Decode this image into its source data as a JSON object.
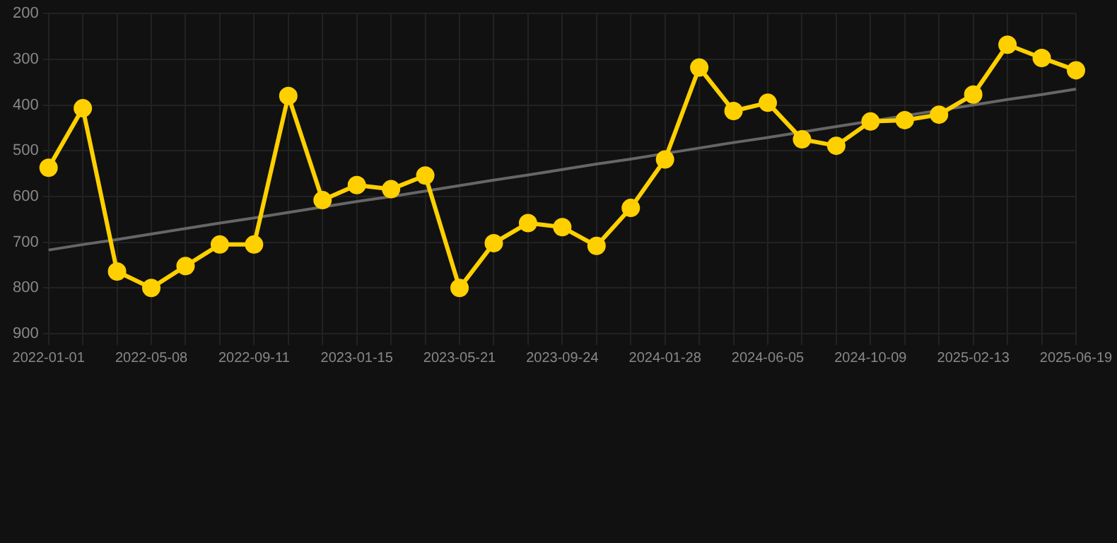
{
  "chart_data": {
    "type": "line",
    "categories": [
      "2022-01-01",
      null,
      null,
      "2022-05-08",
      null,
      null,
      "2022-09-11",
      null,
      null,
      "2023-01-15",
      null,
      null,
      "2023-05-21",
      null,
      null,
      "2023-09-24",
      null,
      null,
      "2024-01-28",
      null,
      null,
      "2024-06-05",
      null,
      null,
      "2024-10-09",
      null,
      null,
      "2025-02-13",
      null,
      null,
      "2025-06-19"
    ],
    "series": [
      {
        "type": "line",
        "color": "#ffd000",
        "marker": "circle",
        "values": [
          537,
          407,
          764,
          800,
          752,
          705,
          705,
          380,
          608,
          575,
          584,
          554,
          800,
          702,
          658,
          667,
          708,
          625,
          519,
          318,
          413,
          395,
          475,
          489,
          436,
          433,
          421,
          377,
          268,
          297,
          324
        ]
      },
      {
        "type": "line",
        "color": "#666666",
        "marker": "none",
        "values": [
          717,
          705,
          694,
          682,
          670,
          658,
          647,
          635,
          623,
          611,
          600,
          588,
          576,
          564,
          553,
          541,
          529,
          518,
          506,
          494,
          482,
          471,
          459,
          447,
          null,
          null,
          null,
          400,
          388,
          377,
          365
        ]
      }
    ],
    "ylim": [
      900,
      200
    ],
    "yticks": [
      200,
      300,
      400,
      500,
      600,
      700,
      800,
      900
    ],
    "grid": true,
    "legend": false
  }
}
